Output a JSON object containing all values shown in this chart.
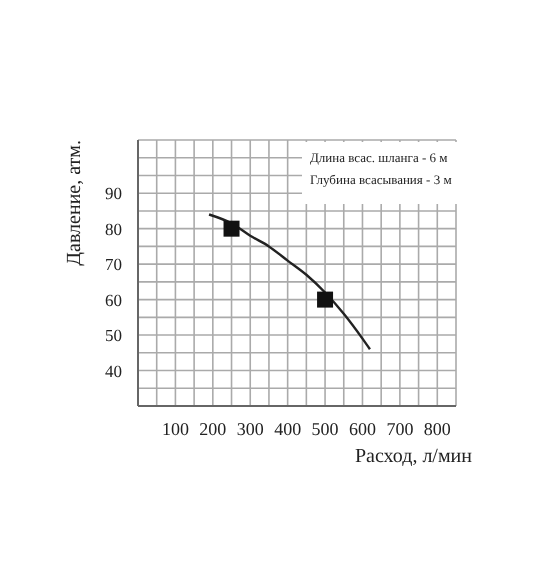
{
  "chart_data": {
    "type": "line",
    "xlabel": "Расход, л/мин",
    "ylabel": "Давление, атм.",
    "annotations": [
      "Длина всас. шланга - 6 м",
      "Глубина всасывания - 3 м"
    ],
    "xlim": [
      0,
      850
    ],
    "ylim": [
      30,
      105
    ],
    "xticks": [
      {
        "value": 0,
        "label": null
      },
      {
        "value": 50,
        "label": null
      },
      100,
      {
        "value": 150,
        "label": null
      },
      200,
      {
        "value": 250,
        "label": null
      },
      300,
      {
        "value": 350,
        "label": null
      },
      400,
      {
        "value": 450,
        "label": null
      },
      500,
      {
        "value": 550,
        "label": null
      },
      600,
      {
        "value": 650,
        "label": null
      },
      700,
      {
        "value": 750,
        "label": null
      },
      800,
      {
        "value": 850,
        "label": null
      }
    ],
    "yticks": [
      {
        "value": 30,
        "label": null
      },
      {
        "value": 35,
        "label": null
      },
      40,
      {
        "value": 45,
        "label": null
      },
      50,
      {
        "value": 55,
        "label": null
      },
      60,
      {
        "value": 65,
        "label": null
      },
      70,
      {
        "value": 75,
        "label": null
      },
      80,
      {
        "value": 85,
        "label": null
      },
      90,
      {
        "value": 95,
        "label": null
      },
      {
        "value": 100,
        "label": null
      },
      {
        "value": 105,
        "label": null
      }
    ],
    "grid": true,
    "series": [
      {
        "type": "line",
        "color": "#222222",
        "marker": "none",
        "x": [
          190,
          250,
          300,
          350,
          400,
          450,
          500,
          550,
          600,
          620
        ],
        "values": [
          84,
          81.5,
          78,
          75,
          71,
          67,
          62,
          56,
          49,
          46
        ]
      },
      {
        "type": "scatter",
        "color": "#111111",
        "marker": "square",
        "x": [
          250,
          500
        ],
        "values": [
          80,
          60
        ]
      }
    ]
  }
}
